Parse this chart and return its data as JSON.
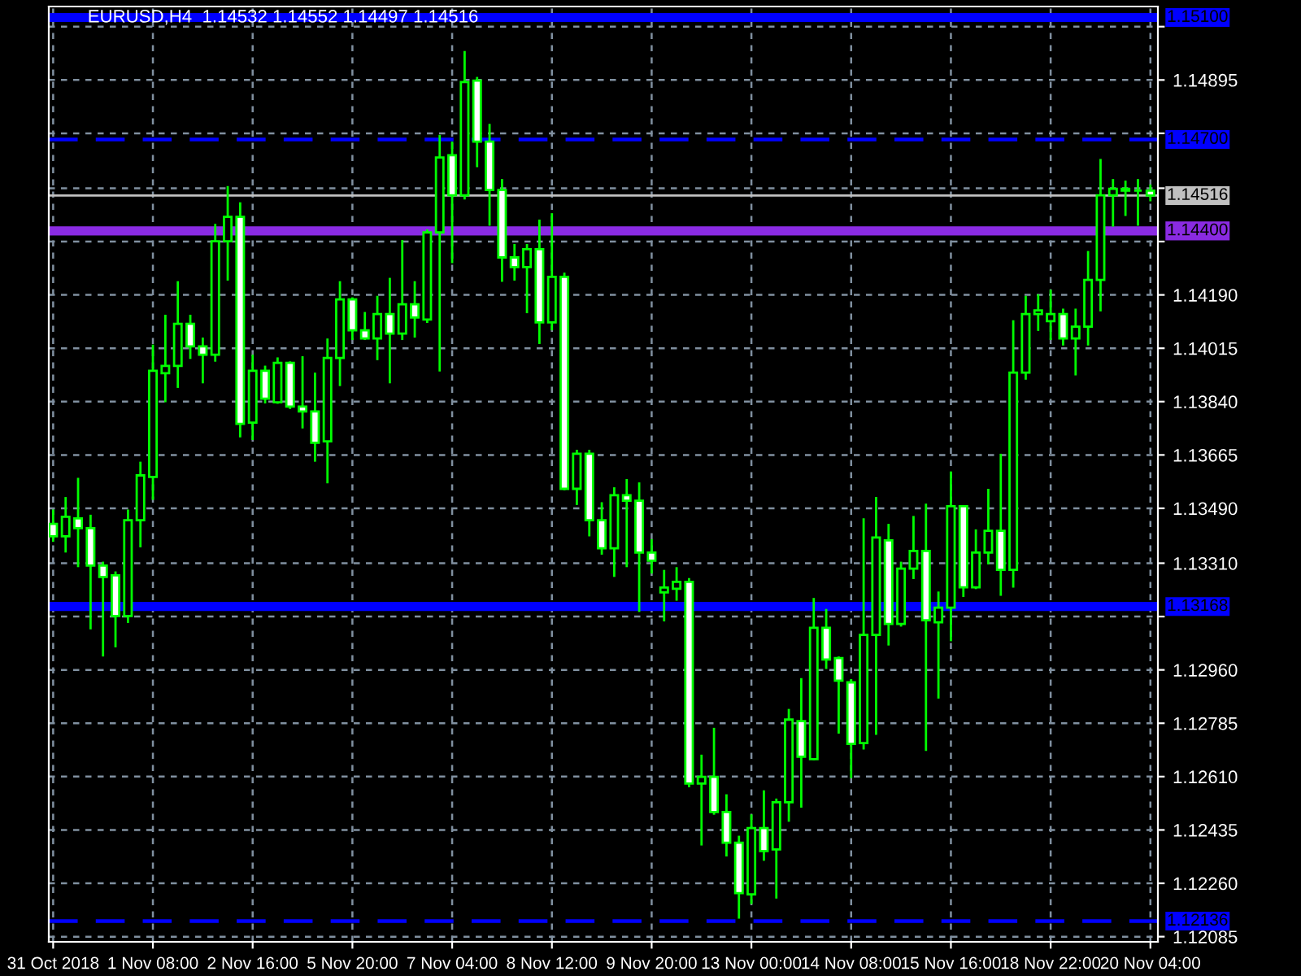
{
  "chart_data": {
    "type": "candlestick",
    "title": "EURUSD,H4  1.14532 1.14552 1.14497 1.14516",
    "categories": [
      "31 Oct 2018",
      null,
      null,
      null,
      null,
      null,
      null,
      null,
      "1 Nov 08:00",
      null,
      null,
      null,
      null,
      null,
      null,
      null,
      "2 Nov 16:00",
      null,
      null,
      null,
      null,
      null,
      null,
      null,
      "5 Nov 20:00",
      null,
      null,
      null,
      null,
      null,
      null,
      null,
      "7 Nov 04:00",
      null,
      null,
      null,
      null,
      null,
      null,
      null,
      "8 Nov 12:00",
      null,
      null,
      null,
      null,
      null,
      null,
      null,
      "9 Nov 20:00",
      null,
      null,
      null,
      null,
      null,
      null,
      null,
      "13 Nov 00:00",
      null,
      null,
      null,
      null,
      null,
      null,
      null,
      "14 Nov 08:00",
      null,
      null,
      null,
      null,
      null,
      null,
      null,
      "15 Nov 16:00",
      null,
      null,
      null,
      null,
      null,
      null,
      null,
      "18 Nov 22:00",
      null,
      null,
      null,
      null,
      null,
      null,
      null,
      "20 Nov 04:00"
    ],
    "ohlc": [
      [
        1.13439,
        1.13486,
        1.1338,
        1.13398
      ],
      [
        1.13398,
        1.13527,
        1.13345,
        1.13462
      ],
      [
        1.13457,
        1.1359,
        1.13297,
        1.13425
      ],
      [
        1.13425,
        1.13469,
        1.13093,
        1.13302
      ],
      [
        1.13302,
        1.13315,
        1.13004,
        1.13265
      ],
      [
        1.1327,
        1.13283,
        1.13034,
        1.13137
      ],
      [
        1.13137,
        1.13486,
        1.13114,
        1.13451
      ],
      [
        1.13451,
        1.13643,
        1.13362,
        1.13598
      ],
      [
        1.13593,
        1.14027,
        1.13518,
        1.13941
      ],
      [
        1.13933,
        1.14125,
        1.13838,
        1.13957
      ],
      [
        1.13957,
        1.14235,
        1.13885,
        1.14095
      ],
      [
        1.14095,
        1.14125,
        1.1398,
        1.14021
      ],
      [
        1.14021,
        1.1405,
        1.139,
        1.13994
      ],
      [
        1.13994,
        1.14423,
        1.13971,
        1.14366
      ],
      [
        1.14366,
        1.14547,
        1.14237,
        1.14446
      ],
      [
        1.14446,
        1.14494,
        1.13723,
        1.13767
      ],
      [
        1.13771,
        1.13994,
        1.13714,
        1.13941
      ],
      [
        1.13941,
        1.13958,
        1.13834,
        1.1385
      ],
      [
        1.13838,
        1.13985,
        1.13833,
        1.13967
      ],
      [
        1.13967,
        1.13972,
        1.13816,
        1.13824
      ],
      [
        1.13824,
        1.13989,
        1.13752,
        1.13808
      ],
      [
        1.13808,
        1.13935,
        1.13643,
        1.13705
      ],
      [
        1.1371,
        1.14047,
        1.13572,
        1.13983
      ],
      [
        1.13983,
        1.14235,
        1.13891,
        1.14175
      ],
      [
        1.14175,
        1.14182,
        1.14042,
        1.14074
      ],
      [
        1.14074,
        1.14134,
        1.14042,
        1.14047
      ],
      [
        1.14047,
        1.14187,
        1.13976,
        1.14127
      ],
      [
        1.14127,
        1.14246,
        1.139,
        1.14063
      ],
      [
        1.14063,
        1.1437,
        1.14042,
        1.14159
      ],
      [
        1.14159,
        1.14235,
        1.1405,
        1.14116
      ],
      [
        1.14109,
        1.14405,
        1.14098,
        1.14395
      ],
      [
        1.14395,
        1.14715,
        1.13939,
        1.14641
      ],
      [
        1.14648,
        1.14693,
        1.14294,
        1.14517
      ],
      [
        1.14517,
        1.1499,
        1.14503,
        1.14888
      ],
      [
        1.14893,
        1.14905,
        1.14609,
        1.14693
      ],
      [
        1.14693,
        1.14751,
        1.14417,
        1.14534
      ],
      [
        1.14534,
        1.1457,
        1.14233,
        1.14313
      ],
      [
        1.14313,
        1.14357,
        1.14237,
        1.14281
      ],
      [
        1.14281,
        1.14357,
        1.1413,
        1.1434
      ],
      [
        1.1434,
        1.14437,
        1.14029,
        1.141
      ],
      [
        1.141,
        1.14458,
        1.14074,
        1.14249
      ],
      [
        1.14249,
        1.14263,
        1.13549,
        1.13554
      ],
      [
        1.13554,
        1.13682,
        1.13501,
        1.13669
      ],
      [
        1.13669,
        1.13682,
        1.13398,
        1.13451
      ],
      [
        1.13451,
        1.1351,
        1.13338,
        1.13359
      ],
      [
        1.13359,
        1.13559,
        1.13265,
        1.13533
      ],
      [
        1.13533,
        1.13586,
        1.13297,
        1.13515
      ],
      [
        1.13515,
        1.13575,
        1.1315,
        1.13345
      ],
      [
        1.13345,
        1.13389,
        1.13276,
        1.13318
      ],
      [
        1.13214,
        1.13288,
        1.13119,
        1.1323
      ],
      [
        1.13226,
        1.13297,
        1.13187,
        1.13249
      ],
      [
        1.13249,
        1.13261,
        1.12575,
        1.12587
      ],
      [
        1.12587,
        1.12682,
        1.12384,
        1.12609
      ],
      [
        1.12609,
        1.1277,
        1.12485,
        1.12494
      ],
      [
        1.12494,
        1.12552,
        1.12348,
        1.12393
      ],
      [
        1.12393,
        1.12416,
        1.12144,
        1.12228
      ],
      [
        1.12224,
        1.12486,
        1.12192,
        1.12441
      ],
      [
        1.12441,
        1.12565,
        1.12334,
        1.12366
      ],
      [
        1.12371,
        1.12538,
        1.1221,
        1.12526
      ],
      [
        1.12526,
        1.12832,
        1.12462,
        1.12797
      ],
      [
        1.12792,
        1.12933,
        1.12508,
        1.12675
      ],
      [
        1.12667,
        1.13196,
        1.12664,
        1.13098
      ],
      [
        1.13098,
        1.1316,
        1.12963,
        1.12994
      ],
      [
        1.12999,
        1.13004,
        1.12751,
        1.12925
      ],
      [
        1.12919,
        1.1293,
        1.12605,
        1.12717
      ],
      [
        1.1272,
        1.13457,
        1.12699,
        1.13075
      ],
      [
        1.13075,
        1.13527,
        1.12747,
        1.13394
      ],
      [
        1.13385,
        1.13439,
        1.1304,
        1.13111
      ],
      [
        1.13111,
        1.13315,
        1.13102,
        1.13292
      ],
      [
        1.13292,
        1.13465,
        1.13258,
        1.1335
      ],
      [
        1.1335,
        1.13505,
        1.12694,
        1.13123
      ],
      [
        1.13116,
        1.13217,
        1.12866,
        1.13164
      ],
      [
        1.13164,
        1.13611,
        1.13054,
        1.13497
      ],
      [
        1.13497,
        1.135,
        1.13199,
        1.13231
      ],
      [
        1.13231,
        1.13421,
        1.13225,
        1.13345
      ],
      [
        1.13345,
        1.13554,
        1.13306,
        1.13416
      ],
      [
        1.13416,
        1.13669,
        1.13203,
        1.13288
      ],
      [
        1.13288,
        1.14107,
        1.1323,
        1.13935
      ],
      [
        1.13935,
        1.14187,
        1.13912,
        1.14127
      ],
      [
        1.14127,
        1.14192,
        1.14072,
        1.14139
      ],
      [
        1.14104,
        1.14207,
        1.14042,
        1.14127
      ],
      [
        1.14127,
        1.14145,
        1.14024,
        1.14047
      ],
      [
        1.14047,
        1.14145,
        1.13926,
        1.14086
      ],
      [
        1.14086,
        1.14334,
        1.14024,
        1.14239
      ],
      [
        1.14239,
        1.14636,
        1.14136,
        1.14517
      ],
      [
        1.14517,
        1.1457,
        1.14414,
        1.14538
      ],
      [
        1.14538,
        1.14565,
        1.14449,
        1.14532
      ],
      [
        1.14532,
        1.1457,
        1.14417,
        1.14532
      ],
      [
        1.14532,
        1.14552,
        1.14497,
        1.14516
      ]
    ],
    "ylim": [
      1.12068,
      1.15136
    ],
    "yticks": [
      {
        "value": 1.1507,
        "label": null
      },
      1.14895,
      {
        "value": 1.1472,
        "label": null
      },
      {
        "value": 1.1454,
        "label": null
      },
      {
        "value": 1.14365,
        "label": null
      },
      {
        "value": 1.1419,
        "label": "1.14190"
      },
      1.14015,
      {
        "value": 1.1384,
        "label": "1.13840"
      },
      1.13665,
      {
        "value": 1.1349,
        "label": "1.13490"
      },
      {
        "value": 1.1331,
        "label": "1.13310"
      },
      {
        "value": 1.13135,
        "label": null
      },
      {
        "value": 1.1296,
        "label": "1.12960"
      },
      1.12785,
      {
        "value": 1.1261,
        "label": "1.12610"
      },
      1.12435,
      {
        "value": 1.1226,
        "label": "1.12260"
      },
      1.12085
    ],
    "grid": true,
    "ref_lines": [
      {
        "axis": "y",
        "value": 1.151,
        "label": "1.15100",
        "color": "#0000ff"
      },
      {
        "axis": "y",
        "value": 1.147,
        "label": "1.14700",
        "color": "#0000ff",
        "line_style": "dashed"
      },
      {
        "axis": "y",
        "value": 1.14516,
        "label": "1.14516",
        "color": "#c0c0c0"
      },
      {
        "axis": "y",
        "value": 1.144,
        "label": "1.14400",
        "color": "#8a2be2"
      },
      {
        "axis": "y",
        "value": 1.13168,
        "label": "1.13168",
        "color": "#0000ff"
      },
      {
        "axis": "y",
        "value": 1.12136,
        "label": "1.12136",
        "color": "#0000ff",
        "line_style": "dashed"
      }
    ]
  }
}
